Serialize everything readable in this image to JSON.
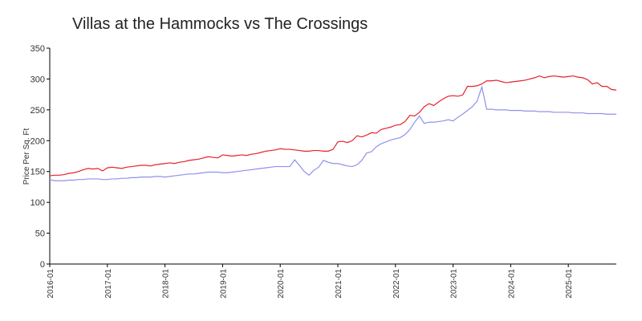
{
  "chart_data": {
    "type": "line",
    "title": "Villas at the Hammocks vs The Crossings",
    "y_label": "Price Per Sq. Ft",
    "x": [
      "2016-01",
      "2016-02",
      "2016-03",
      "2016-04",
      "2016-05",
      "2016-06",
      "2016-07",
      "2016-08",
      "2016-09",
      "2016-10",
      "2016-11",
      "2016-12",
      "2017-01",
      "2017-02",
      "2017-03",
      "2017-04",
      "2017-05",
      "2017-06",
      "2017-07",
      "2017-08",
      "2017-09",
      "2017-10",
      "2017-11",
      "2017-12",
      "2018-01",
      "2018-02",
      "2018-03",
      "2018-04",
      "2018-05",
      "2018-06",
      "2018-07",
      "2018-08",
      "2018-09",
      "2018-10",
      "2018-11",
      "2018-12",
      "2019-01",
      "2019-02",
      "2019-03",
      "2019-04",
      "2019-05",
      "2019-06",
      "2019-07",
      "2019-08",
      "2019-09",
      "2019-10",
      "2019-11",
      "2019-12",
      "2020-01",
      "2020-02",
      "2020-03",
      "2020-04",
      "2020-05",
      "2020-06",
      "2020-07",
      "2020-08",
      "2020-09",
      "2020-10",
      "2020-11",
      "2020-12",
      "2021-01",
      "2021-02",
      "2021-03",
      "2021-04",
      "2021-05",
      "2021-06",
      "2021-07",
      "2021-08",
      "2021-09",
      "2021-10",
      "2021-11",
      "2021-12",
      "2022-01",
      "2022-02",
      "2022-03",
      "2022-04",
      "2022-05",
      "2022-06",
      "2022-07",
      "2022-08",
      "2022-09",
      "2022-10",
      "2022-11",
      "2022-12",
      "2023-01",
      "2023-02",
      "2023-03",
      "2023-04",
      "2023-05",
      "2023-06",
      "2023-07",
      "2023-08",
      "2023-09",
      "2023-10",
      "2023-11",
      "2023-12",
      "2024-01",
      "2024-02",
      "2024-03",
      "2024-04",
      "2024-05",
      "2024-06",
      "2024-07",
      "2024-08",
      "2024-09",
      "2024-10",
      "2024-11",
      "2024-12",
      "2025-01",
      "2025-02",
      "2025-03",
      "2025-04",
      "2025-05",
      "2025-06",
      "2025-07",
      "2025-08",
      "2025-09",
      "2025-10",
      "2025-11"
    ],
    "xlim": [
      "2016-01",
      "2025-11"
    ],
    "xticks": [
      "2016-01",
      "2017-01",
      "2018-01",
      "2019-01",
      "2020-01",
      "2021-01",
      "2022-01",
      "2023-01",
      "2024-01",
      "2025-01"
    ],
    "ylim": [
      0,
      350
    ],
    "yticks": [
      0,
      50,
      100,
      150,
      200,
      250,
      300,
      350
    ],
    "grid": false,
    "series": [
      {
        "color": "#e8202a",
        "values": [
          143,
          144,
          144,
          145,
          147,
          148,
          150,
          153,
          155,
          154,
          155,
          151,
          156,
          157,
          156,
          155,
          157,
          158,
          159,
          160,
          160,
          159,
          161,
          162,
          163,
          164,
          163,
          165,
          166,
          168,
          169,
          170,
          172,
          174,
          173,
          172,
          177,
          176,
          175,
          176,
          177,
          176,
          178,
          179,
          181,
          183,
          184,
          185,
          187,
          186,
          186,
          185,
          184,
          183,
          183,
          184,
          184,
          183,
          183,
          186,
          198,
          199,
          197,
          200,
          208,
          206,
          209,
          213,
          212,
          218,
          220,
          222,
          225,
          226,
          231,
          241,
          240,
          246,
          255,
          260,
          257,
          263,
          268,
          272,
          273,
          272,
          274,
          288,
          288,
          289,
          292,
          297,
          297,
          298,
          296,
          294,
          295,
          296,
          297,
          298,
          300,
          302,
          305,
          302,
          304,
          305,
          304,
          303,
          304,
          305,
          303,
          302,
          299,
          292,
          294,
          288,
          288,
          283,
          282
        ]
      },
      {
        "color": "#9090ee",
        "values": [
          137,
          135,
          135,
          135,
          136,
          136,
          137,
          137,
          138,
          138,
          138,
          137,
          137,
          138,
          138,
          139,
          139,
          140,
          140,
          141,
          141,
          141,
          142,
          142,
          141,
          142,
          143,
          144,
          145,
          146,
          146,
          147,
          148,
          149,
          149,
          149,
          148,
          148,
          149,
          150,
          151,
          152,
          153,
          154,
          155,
          156,
          157,
          158,
          158,
          158,
          158,
          169,
          160,
          150,
          144,
          152,
          157,
          168,
          165,
          163,
          163,
          161,
          159,
          158,
          161,
          168,
          180,
          182,
          190,
          195,
          198,
          201,
          203,
          205,
          210,
          218,
          230,
          240,
          228,
          230,
          230,
          231,
          232,
          234,
          232,
          238,
          243,
          249,
          255,
          264,
          287,
          251,
          251,
          250,
          250,
          250,
          249,
          249,
          249,
          248,
          248,
          248,
          247,
          247,
          247,
          246,
          246,
          246,
          246,
          245,
          245,
          245,
          244,
          244,
          244,
          244,
          243,
          243,
          243
        ]
      }
    ]
  }
}
